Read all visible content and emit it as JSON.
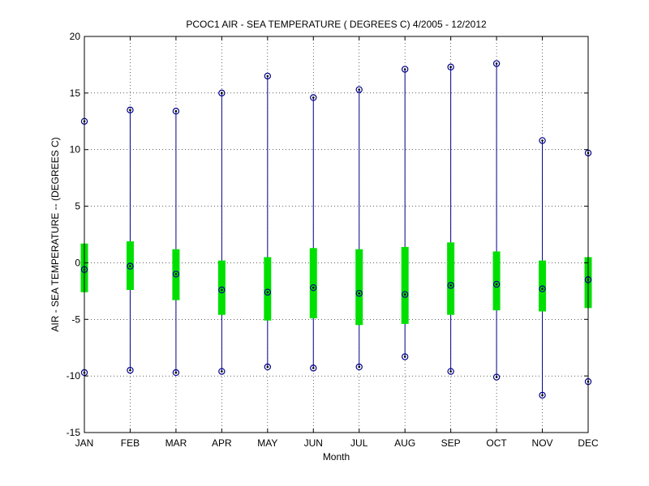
{
  "chart_data": {
    "type": "box",
    "title": "PCOC1  AIR - SEA TEMPERATURE ( DEGREES C) 4/2005 - 12/2012",
    "xlabel": "Month",
    "ylabel": "AIR - SEA TEMPERATURE -- (DEGREES C)",
    "categories": [
      "JAN",
      "FEB",
      "MAR",
      "APR",
      "MAY",
      "JUN",
      "JUL",
      "AUG",
      "SEP",
      "OCT",
      "NOV",
      "DEC"
    ],
    "ylim": [
      -15,
      20
    ],
    "yticks": [
      -15,
      -10,
      -5,
      0,
      5,
      10,
      15,
      20
    ],
    "grid": true,
    "colors": {
      "whisker": "#00008b",
      "box": "#00e000",
      "marker": "#000000",
      "grid": "#000000"
    },
    "series": [
      {
        "category": "JAN",
        "min": -9.7,
        "q1": -2.6,
        "median": -0.6,
        "q3": 1.7,
        "max": 12.5
      },
      {
        "category": "FEB",
        "min": -9.5,
        "q1": -2.4,
        "median": -0.3,
        "q3": 1.9,
        "max": 13.5
      },
      {
        "category": "MAR",
        "min": -9.7,
        "q1": -3.3,
        "median": -1.0,
        "q3": 1.2,
        "max": 13.4
      },
      {
        "category": "APR",
        "min": -9.6,
        "q1": -4.6,
        "median": -2.4,
        "q3": 0.2,
        "max": 15.0
      },
      {
        "category": "MAY",
        "min": -9.2,
        "q1": -5.1,
        "median": -2.6,
        "q3": 0.5,
        "max": 16.5
      },
      {
        "category": "JUN",
        "min": -9.3,
        "q1": -4.9,
        "median": -2.2,
        "q3": 1.3,
        "max": 14.6
      },
      {
        "category": "JUL",
        "min": -9.2,
        "q1": -5.5,
        "median": -2.7,
        "q3": 1.2,
        "max": 15.3
      },
      {
        "category": "AUG",
        "min": -8.3,
        "q1": -5.4,
        "median": -2.8,
        "q3": 1.4,
        "max": 17.1
      },
      {
        "category": "SEP",
        "min": -9.6,
        "q1": -4.6,
        "median": -2.0,
        "q3": 1.8,
        "max": 17.3
      },
      {
        "category": "OCT",
        "min": -10.1,
        "q1": -4.2,
        "median": -1.9,
        "q3": 1.0,
        "max": 17.6
      },
      {
        "category": "NOV",
        "min": -11.7,
        "q1": -4.3,
        "median": -2.3,
        "q3": 0.2,
        "max": 10.8
      },
      {
        "category": "DEC",
        "min": -10.5,
        "q1": -4.0,
        "median": -1.5,
        "q3": 0.5,
        "max": 9.7
      }
    ]
  }
}
